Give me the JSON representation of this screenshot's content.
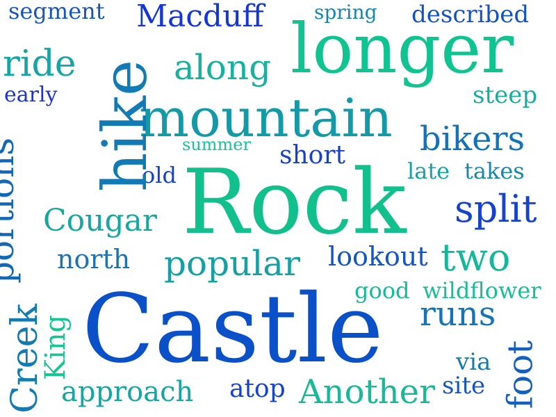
{
  "words": [
    {
      "text": "Castle",
      "color": "#0a50c8",
      "rotated": false
    },
    {
      "text": "Rock",
      "color": "#12c08e",
      "rotated": false
    },
    {
      "text": "longer",
      "color": "#10c492",
      "rotated": false
    },
    {
      "text": "mountain",
      "color": "#149aa6",
      "rotated": false
    },
    {
      "text": "hike",
      "color": "#127ab4",
      "rotated": true
    },
    {
      "text": "Macduff",
      "color": "#1436d8",
      "rotated": false
    },
    {
      "text": "segment",
      "color": "#1656be",
      "rotated": false
    },
    {
      "text": "spring",
      "color": "#1486b6",
      "rotated": false
    },
    {
      "text": "described",
      "color": "#1452c0",
      "rotated": false
    },
    {
      "text": "ride",
      "color": "#16a4a6",
      "rotated": false
    },
    {
      "text": "along",
      "color": "#18b09e",
      "rotated": false
    },
    {
      "text": "early",
      "color": "#1832d4",
      "rotated": false
    },
    {
      "text": "steep",
      "color": "#18aca0",
      "rotated": false
    },
    {
      "text": "bikers",
      "color": "#1272ba",
      "rotated": false
    },
    {
      "text": "summer",
      "color": "#16c496",
      "rotated": false
    },
    {
      "text": "short",
      "color": "#1a40c8",
      "rotated": false
    },
    {
      "text": "old",
      "color": "#1440cc",
      "rotated": false
    },
    {
      "text": "late",
      "color": "#16a2a4",
      "rotated": false
    },
    {
      "text": "takes",
      "color": "#1488ae",
      "rotated": false
    },
    {
      "text": "portions",
      "color": "#1268b6",
      "rotated": true
    },
    {
      "text": "Cougar",
      "color": "#16a8a0",
      "rotated": false
    },
    {
      "text": "split",
      "color": "#1642cc",
      "rotated": false
    },
    {
      "text": "north",
      "color": "#1c72b2",
      "rotated": false
    },
    {
      "text": "popular",
      "color": "#16a0a4",
      "rotated": false
    },
    {
      "text": "lookout",
      "color": "#1456c0",
      "rotated": false
    },
    {
      "text": "two",
      "color": "#14b89a",
      "rotated": false
    },
    {
      "text": "good",
      "color": "#18b89a",
      "rotated": false
    },
    {
      "text": "wildflower",
      "color": "#18bc96",
      "rotated": false
    },
    {
      "text": "runs",
      "color": "#1474b6",
      "rotated": false
    },
    {
      "text": "Creek",
      "color": "#127cb2",
      "rotated": true
    },
    {
      "text": "King",
      "color": "#16c496",
      "rotated": true
    },
    {
      "text": "via",
      "color": "#147cb0",
      "rotated": false
    },
    {
      "text": "foot",
      "color": "#1460bc",
      "rotated": true
    },
    {
      "text": "approach",
      "color": "#16a6a2",
      "rotated": false
    },
    {
      "text": "atop",
      "color": "#1642cc",
      "rotated": false
    },
    {
      "text": "Another",
      "color": "#18b89a",
      "rotated": false
    },
    {
      "text": "site",
      "color": "#1456c0",
      "rotated": false
    }
  ]
}
